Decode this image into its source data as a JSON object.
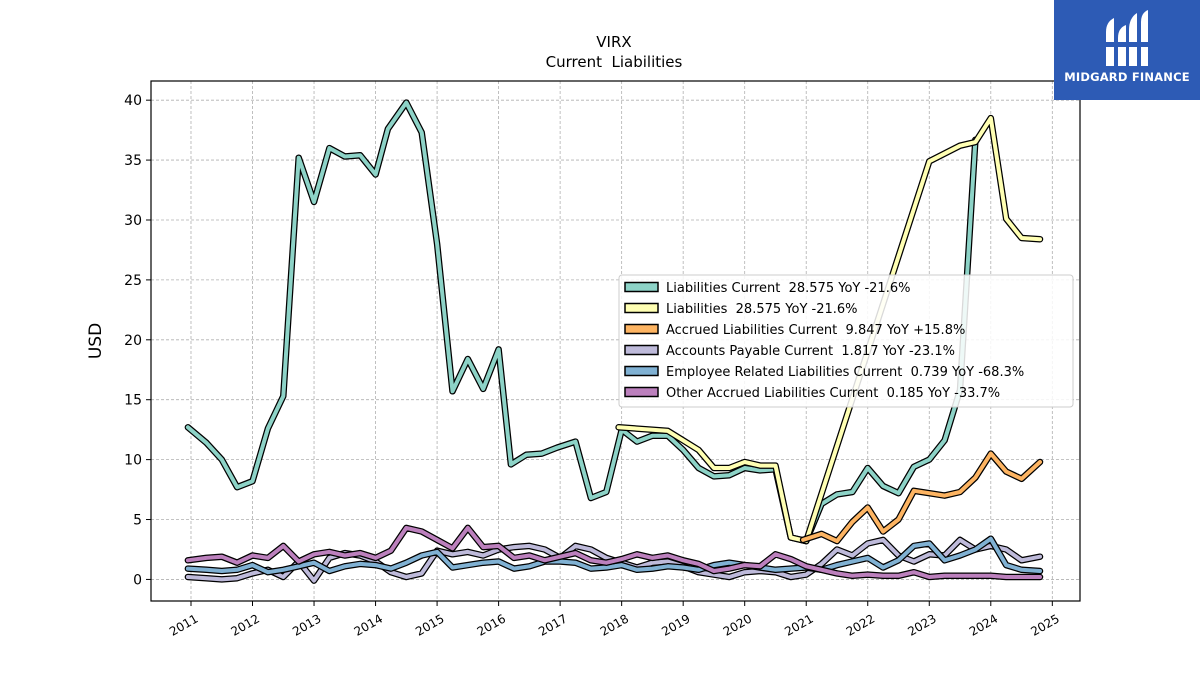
{
  "brand": {
    "name": "MIDGARD FINANCE",
    "bg_color": "#2d5bb5"
  },
  "chart_data": {
    "type": "line",
    "title": "VIRX",
    "subtitle": "Current  Liabilities",
    "ylabel": "USD",
    "xlabel": "",
    "ylim": [
      -1.8,
      41.6
    ],
    "yticks": [
      0,
      5,
      10,
      15,
      20,
      25,
      30,
      35,
      40
    ],
    "xlim": [
      2010.35,
      2025.45
    ],
    "xticks": [
      2011,
      2012,
      2013,
      2014,
      2015,
      2016,
      2017,
      2018,
      2019,
      2020,
      2021,
      2022,
      2023,
      2024,
      2025
    ],
    "grid": true,
    "legend_position": "center-right",
    "series": [
      {
        "name": "Liabilities Current",
        "legend": "Liabilities Current  28.575 YoY -21.6%",
        "color": "#8dd3c7",
        "x": [
          2010.95,
          2011.25,
          2011.5,
          2011.75,
          2012.0,
          2012.25,
          2012.5,
          2012.75,
          2013.0,
          2013.25,
          2013.5,
          2013.75,
          2014.0,
          2014.2,
          2014.5,
          2014.75,
          2015.0,
          2015.25,
          2015.5,
          2015.75,
          2016.0,
          2016.2,
          2016.45,
          2016.7,
          2016.95,
          2017.25,
          2017.5,
          2017.75,
          2018.0,
          2018.25,
          2018.5,
          2018.75,
          2019.0,
          2019.25,
          2019.5,
          2019.75,
          2020.0,
          2020.25,
          2020.5,
          2020.75,
          2021.0,
          2021.25,
          2021.5,
          2021.75,
          2022.0,
          2022.25,
          2022.5,
          2022.75,
          2023.0,
          2023.25,
          2023.5,
          2023.75
        ],
        "y": [
          12.7,
          11.4,
          10.0,
          7.7,
          8.2,
          12.6,
          15.3,
          35.2,
          31.5,
          36.0,
          35.3,
          35.4,
          33.8,
          37.6,
          39.8,
          37.3,
          28.0,
          15.7,
          18.4,
          15.9,
          19.2,
          9.6,
          10.4,
          10.5,
          11.0,
          11.5,
          6.8,
          7.3,
          12.5,
          11.5,
          12.0,
          12.0,
          10.8,
          9.3,
          8.6,
          8.7,
          9.3,
          9.1,
          9.2,
          3.5,
          3.2,
          6.3,
          7.1,
          7.3,
          9.3,
          7.8,
          7.2,
          9.4,
          10.0,
          11.6,
          15.8,
          36.7
        ]
      },
      {
        "name": "Liabilities",
        "legend": "Liabilities  28.575 YoY -21.6%",
        "color": "#ffffb3",
        "x": [
          2017.95,
          2018.5,
          2018.75,
          2019.0,
          2019.25,
          2019.5,
          2019.75,
          2020.0,
          2020.25,
          2020.5,
          2020.75,
          2021.0,
          2023.0,
          2023.5,
          2023.75,
          2024.0,
          2024.25,
          2024.5,
          2024.8
        ],
        "y": [
          12.7,
          12.5,
          12.4,
          11.6,
          10.8,
          9.3,
          9.3,
          9.8,
          9.5,
          9.5,
          3.5,
          3.2,
          34.9,
          36.2,
          36.5,
          38.5,
          30.1,
          28.5,
          28.4
        ]
      },
      {
        "name": "Accrued Liabilities Current",
        "legend": "Accrued Liabilities Current  9.847 YoY +15.8%",
        "color": "#fdb462",
        "x": [
          2020.95,
          2021.25,
          2021.5,
          2021.75,
          2022.0,
          2022.25,
          2022.5,
          2022.75,
          2023.0,
          2023.25,
          2023.5,
          2023.75,
          2024.0,
          2024.25,
          2024.5,
          2024.8
        ],
        "y": [
          3.3,
          3.8,
          3.2,
          4.8,
          6.0,
          4.0,
          5.0,
          7.4,
          7.2,
          7.0,
          7.3,
          8.5,
          10.5,
          9.0,
          8.4,
          9.8
        ]
      },
      {
        "name": "Accounts Payable Current",
        "legend": "Accounts Payable Current  1.817 YoY -23.1%",
        "color": "#bebada",
        "x": [
          2010.95,
          2011.25,
          2011.5,
          2011.75,
          2012.0,
          2012.25,
          2012.5,
          2012.75,
          2013.0,
          2013.25,
          2013.5,
          2013.75,
          2014.0,
          2014.25,
          2014.5,
          2014.75,
          2015.0,
          2015.25,
          2015.5,
          2015.75,
          2016.0,
          2016.25,
          2016.5,
          2016.75,
          2017.0,
          2017.25,
          2017.5,
          2017.75,
          2018.0,
          2018.25,
          2018.5,
          2018.75,
          2019.0,
          2019.25,
          2019.5,
          2019.75,
          2020.0,
          2020.25,
          2020.5,
          2020.75,
          2021.0,
          2021.25,
          2021.5,
          2021.75,
          2022.0,
          2022.25,
          2022.5,
          2022.75,
          2023.0,
          2023.25,
          2023.5,
          2023.75,
          2024.0,
          2024.25,
          2024.5,
          2024.8
        ],
        "y": [
          0.2,
          0.1,
          0.0,
          0.1,
          0.5,
          0.8,
          0.2,
          1.5,
          -0.1,
          1.8,
          2.2,
          2.0,
          1.5,
          0.6,
          0.2,
          0.5,
          2.4,
          2.1,
          2.3,
          2.0,
          2.5,
          2.7,
          2.8,
          2.5,
          1.8,
          2.8,
          2.5,
          1.8,
          1.4,
          1.0,
          1.4,
          1.5,
          1.1,
          0.6,
          0.4,
          0.2,
          0.6,
          0.7,
          0.6,
          0.2,
          0.4,
          1.3,
          2.5,
          2.0,
          3.0,
          3.3,
          2.0,
          1.5,
          2.1,
          2.0,
          3.3,
          2.5,
          2.8,
          2.5,
          1.6,
          1.9
        ]
      },
      {
        "name": "Employee Related Liabilities Current",
        "legend": "Employee Related Liabilities Current  0.739 YoY -68.3%",
        "color": "#80b1d3",
        "x": [
          2010.95,
          2011.25,
          2011.5,
          2011.75,
          2012.0,
          2012.25,
          2012.5,
          2012.75,
          2013.0,
          2013.25,
          2013.5,
          2013.75,
          2014.0,
          2014.25,
          2014.5,
          2014.75,
          2015.0,
          2015.25,
          2015.5,
          2015.75,
          2016.0,
          2016.25,
          2016.5,
          2016.75,
          2017.0,
          2017.25,
          2017.5,
          2017.75,
          2018.0,
          2018.25,
          2018.5,
          2018.75,
          2019.0,
          2019.25,
          2019.5,
          2019.75,
          2020.0,
          2020.25,
          2020.5,
          2020.75,
          2021.0,
          2021.25,
          2021.5,
          2021.75,
          2022.0,
          2022.25,
          2022.5,
          2022.75,
          2023.0,
          2023.25,
          2023.5,
          2023.75,
          2024.0,
          2024.25,
          2024.5,
          2024.8
        ],
        "y": [
          0.9,
          0.8,
          0.7,
          0.8,
          1.2,
          0.6,
          0.8,
          1.1,
          1.4,
          0.7,
          1.1,
          1.3,
          1.2,
          0.9,
          1.4,
          2.0,
          2.3,
          1.0,
          1.2,
          1.4,
          1.5,
          0.9,
          1.1,
          1.5,
          1.5,
          1.4,
          0.9,
          1.0,
          1.2,
          0.8,
          0.9,
          1.1,
          1.0,
          0.8,
          1.2,
          1.4,
          1.2,
          1.0,
          0.8,
          0.9,
          1.0,
          0.8,
          1.2,
          1.5,
          1.8,
          1.0,
          1.6,
          2.8,
          3.0,
          1.6,
          2.0,
          2.5,
          3.4,
          1.2,
          0.8,
          0.7
        ]
      },
      {
        "name": "Other Accrued Liabilities Current",
        "legend": "Other Accrued Liabilities Current  0.185 YoY -33.7%",
        "color": "#bc80bd",
        "x": [
          2010.95,
          2011.25,
          2011.5,
          2011.75,
          2012.0,
          2012.25,
          2012.5,
          2012.75,
          2013.0,
          2013.25,
          2013.5,
          2013.75,
          2014.0,
          2014.25,
          2014.5,
          2014.75,
          2015.0,
          2015.25,
          2015.5,
          2015.75,
          2016.0,
          2016.25,
          2016.5,
          2016.75,
          2017.0,
          2017.25,
          2017.5,
          2017.75,
          2018.0,
          2018.25,
          2018.5,
          2018.75,
          2019.0,
          2019.25,
          2019.5,
          2019.75,
          2020.0,
          2020.25,
          2020.5,
          2020.75,
          2021.0,
          2021.25,
          2021.5,
          2021.75,
          2022.0,
          2022.25,
          2022.5,
          2022.75,
          2023.0,
          2023.25,
          2023.5,
          2023.75,
          2024.0,
          2024.25,
          2024.5,
          2024.8
        ],
        "y": [
          1.6,
          1.8,
          1.9,
          1.4,
          2.0,
          1.8,
          2.8,
          1.5,
          2.1,
          2.3,
          2.0,
          2.2,
          1.8,
          2.4,
          4.3,
          4.0,
          3.3,
          2.6,
          4.3,
          2.7,
          2.8,
          1.8,
          2.0,
          1.6,
          1.9,
          2.2,
          1.6,
          1.4,
          1.7,
          2.1,
          1.8,
          2.0,
          1.6,
          1.3,
          0.7,
          0.9,
          1.2,
          1.1,
          2.1,
          1.7,
          1.1,
          0.8,
          0.5,
          0.3,
          0.4,
          0.3,
          0.3,
          0.6,
          0.2,
          0.3,
          0.3,
          0.3,
          0.3,
          0.2,
          0.2,
          0.2
        ]
      }
    ]
  }
}
